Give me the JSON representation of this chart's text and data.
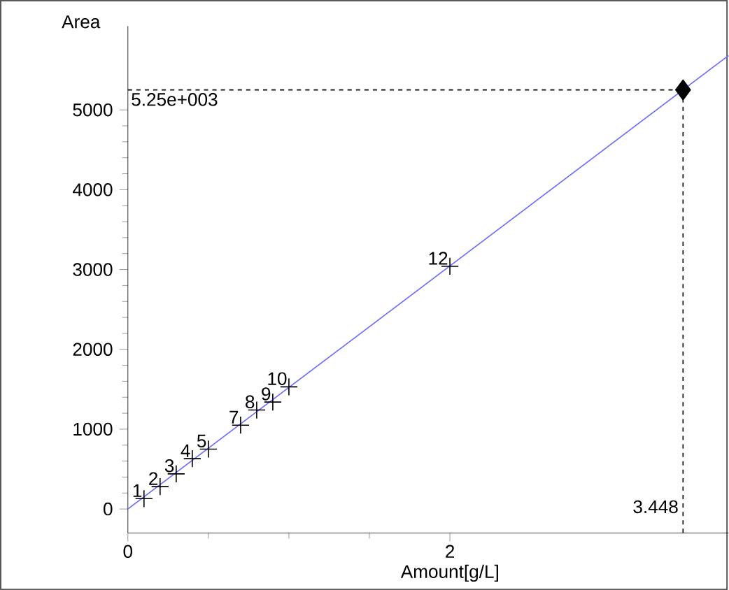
{
  "chart_data": {
    "type": "line",
    "xlabel": "Amount[g/L]",
    "ylabel": "Area",
    "xlim": [
      0,
      3.73
    ],
    "ylim": [
      -300,
      6050
    ],
    "xticks": [
      0,
      2
    ],
    "yticks": [
      0,
      1000,
      2000,
      3000,
      4000,
      5000
    ],
    "series": [
      {
        "x": [
          0,
          3.73
        ],
        "values": [
          0,
          5680
        ],
        "color": "#6a6aff",
        "marker": "none"
      },
      {
        "type": "scatter",
        "x": [
          0.1,
          0.2,
          0.3,
          0.4,
          0.5,
          0.7,
          0.8,
          0.9,
          1.0,
          2.0
        ],
        "values": [
          130,
          280,
          440,
          630,
          750,
          1050,
          1240,
          1340,
          1530,
          3040
        ],
        "color": "#000000",
        "marker": "cross"
      },
      {
        "type": "scatter",
        "x": [
          3.448
        ],
        "values": [
          5250
        ],
        "color": "#000000",
        "marker": "diamond"
      }
    ],
    "ref_lines": [
      {
        "axis": "y",
        "value": 5250,
        "label": "5.25e+003",
        "color": "#000000",
        "line_style": "dashed"
      },
      {
        "axis": "x",
        "value": 3.448,
        "label": "3.448",
        "color": "#000000",
        "line_style": "dashed"
      }
    ],
    "annotations": [
      {
        "text": "1",
        "x": 0.1,
        "y": 130
      },
      {
        "text": "2",
        "x": 0.2,
        "y": 280
      },
      {
        "text": "3",
        "x": 0.3,
        "y": 440
      },
      {
        "text": "4",
        "x": 0.4,
        "y": 630
      },
      {
        "text": "5",
        "x": 0.5,
        "y": 750
      },
      {
        "text": "7",
        "x": 0.7,
        "y": 1050
      },
      {
        "text": "8",
        "x": 0.8,
        "y": 1240
      },
      {
        "text": "9",
        "x": 0.9,
        "y": 1340
      },
      {
        "text": "10",
        "x": 1.0,
        "y": 1530
      },
      {
        "text": "12",
        "x": 2.0,
        "y": 3040
      }
    ]
  }
}
